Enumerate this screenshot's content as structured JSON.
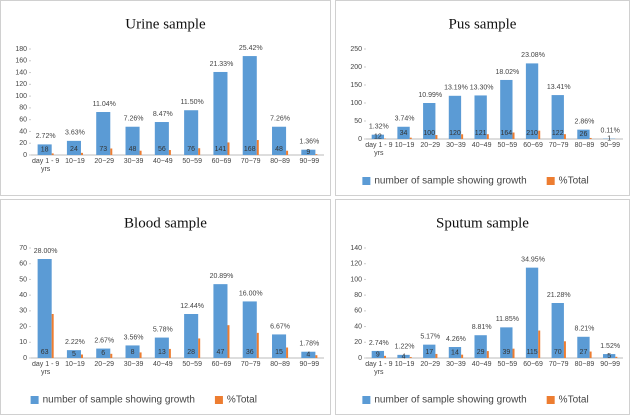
{
  "chart_data": [
    {
      "type": "bar",
      "title": "Urine sample",
      "categories": [
        "day 1 - 9 yrs",
        "10−19",
        "20−29",
        "30−39",
        "40−49",
        "50−59",
        "60−69",
        "70−79",
        "80−89",
        "90−99"
      ],
      "series": [
        {
          "color": "#5b9bd5",
          "values": [
            18,
            24,
            73,
            48,
            56,
            76,
            141,
            168,
            48,
            9
          ]
        },
        {
          "color": "#ed7d31",
          "values": [
            2.72,
            3.63,
            11.04,
            7.26,
            8.47,
            11.5,
            21.33,
            25.42,
            7.26,
            1.36
          ],
          "value_labels": [
            "2.72%",
            "3.63%",
            "11.04%",
            "7.26%",
            "8.47%",
            "11.50%",
            "21.33%",
            "25.42%",
            "7.26%",
            "1.36%"
          ]
        }
      ],
      "ylim": [
        0,
        180
      ],
      "yticks": [
        0,
        20,
        40,
        60,
        80,
        100,
        120,
        140,
        160,
        180
      ],
      "legend": false
    },
    {
      "type": "bar",
      "title": "Pus sample",
      "categories": [
        "day 1 - 9 yrs",
        "10−19",
        "20−29",
        "30−39",
        "40−49",
        "50−59",
        "60−69",
        "70−79",
        "80−89",
        "90−99"
      ],
      "series": [
        {
          "name": "number of sample showing growth",
          "color": "#5b9bd5",
          "values": [
            12,
            34,
            100,
            120,
            121,
            164,
            210,
            122,
            26,
            1
          ]
        },
        {
          "name": "%Total",
          "color": "#ed7d31",
          "values": [
            1.32,
            3.74,
            10.99,
            13.19,
            13.3,
            18.02,
            23.08,
            13.41,
            2.86,
            0.11
          ],
          "value_labels": [
            "1.32%",
            "3.74%",
            "10.99%",
            "13.19%",
            "13.30%",
            "18.02%",
            "23.08%",
            "13.41%",
            "2.86%",
            "0.11%"
          ]
        }
      ],
      "ylim": [
        0,
        250
      ],
      "yticks": [
        0,
        50,
        100,
        150,
        200,
        250
      ],
      "legend": "bottom"
    },
    {
      "type": "bar",
      "title": "Blood sample",
      "categories": [
        "day 1 - 9 yrs",
        "10−19",
        "20−29",
        "30−39",
        "40−49",
        "50−59",
        "60−69",
        "70−79",
        "80−89",
        "90−99"
      ],
      "series": [
        {
          "name": "number of sample showing growth",
          "color": "#5b9bd5",
          "values": [
            63,
            5,
            6,
            8,
            13,
            28,
            47,
            36,
            15,
            4
          ]
        },
        {
          "name": "%Total",
          "color": "#ed7d31",
          "values": [
            28.0,
            2.22,
            2.67,
            3.56,
            5.78,
            12.44,
            20.89,
            16.0,
            6.67,
            1.78
          ],
          "value_labels": [
            "28.00%",
            "2.22%",
            "2.67%",
            "3.56%",
            "5.78%",
            "12.44%",
            "20.89%",
            "16.00%",
            "6.67%",
            "1.78%"
          ]
        }
      ],
      "ylim": [
        0,
        70
      ],
      "yticks": [
        0,
        10,
        20,
        30,
        40,
        50,
        60,
        70
      ],
      "legend": "bottom"
    },
    {
      "type": "bar",
      "title": "Sputum sample",
      "categories": [
        "day 1 - 9 yrs",
        "10−19",
        "20−29",
        "30−39",
        "40−49",
        "50−59",
        "60−69",
        "70−79",
        "80−89",
        "90−99"
      ],
      "series": [
        {
          "name": "number of sample showing growth",
          "color": "#5b9bd5",
          "values": [
            9,
            4,
            17,
            14,
            29,
            39,
            115,
            70,
            27,
            5
          ]
        },
        {
          "name": "%Total",
          "color": "#ed7d31",
          "values": [
            2.74,
            1.22,
            5.17,
            4.26,
            8.81,
            11.85,
            34.95,
            21.28,
            8.21,
            1.52
          ],
          "value_labels": [
            "2.74%",
            "1.22%",
            "5.17%",
            "4.26%",
            "8.81%",
            "11.85%",
            "34.95%",
            "21.28%",
            "8.21%",
            "1.52%"
          ]
        }
      ],
      "ylim": [
        0,
        140
      ],
      "yticks": [
        0,
        20,
        40,
        60,
        80,
        100,
        120,
        140
      ],
      "legend": "bottom"
    }
  ]
}
